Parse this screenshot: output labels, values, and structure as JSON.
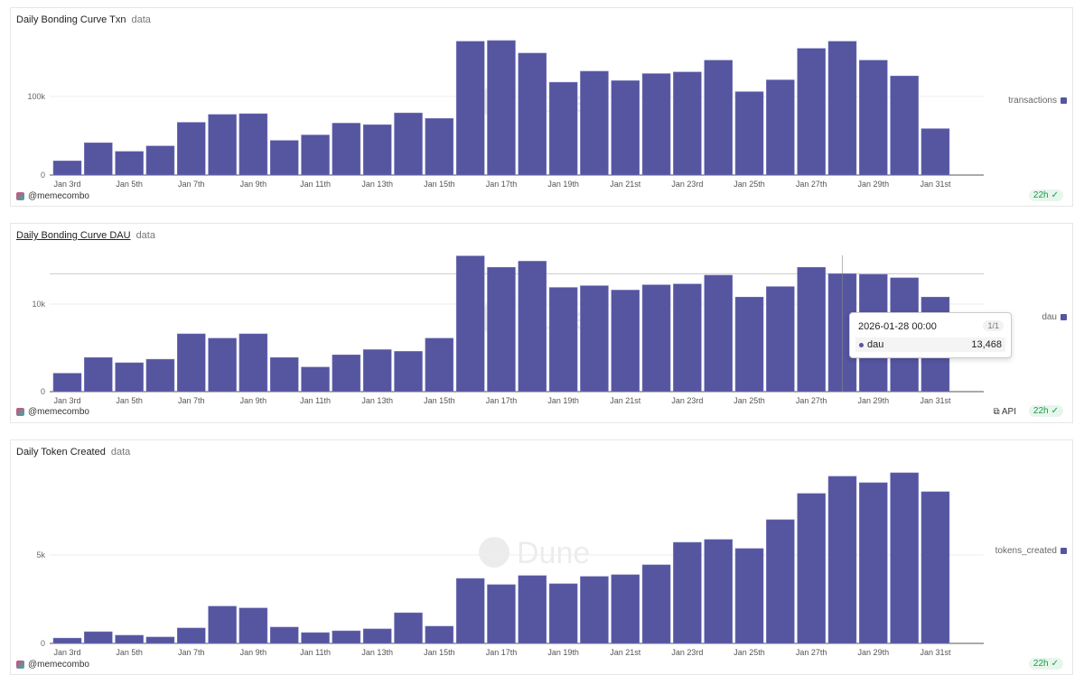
{
  "author": "@memecombo",
  "refresh": "22h",
  "api_label": "API",
  "bar_color": "#5555a0",
  "chart_data": [
    {
      "type": "bar",
      "title": "Daily Bonding Curve Txn",
      "subtitle": "data",
      "series": [
        {
          "name": "transactions",
          "values": [
            18000,
            41000,
            30000,
            37000,
            67000,
            77000,
            78000,
            44000,
            51000,
            66000,
            64000,
            79000,
            72000,
            170000,
            171000,
            155000,
            118000,
            132000,
            120000,
            129000,
            131000,
            146000,
            106000,
            121000,
            161000,
            170000,
            146000,
            126000,
            59000
          ]
        }
      ],
      "categories": [
        "Jan 3rd",
        "Jan 4th",
        "Jan 5th",
        "Jan 6th",
        "Jan 7th",
        "Jan 8th",
        "Jan 9th",
        "Jan 10th",
        "Jan 11th",
        "Jan 12th",
        "Jan 13th",
        "Jan 14th",
        "Jan 15th",
        "Jan 16th",
        "Jan 17th",
        "Jan 18th",
        "Jan 19th",
        "Jan 20th",
        "Jan 21st",
        "Jan 22nd",
        "Jan 23rd",
        "Jan 24th",
        "Jan 25th",
        "Jan 26th",
        "Jan 27th",
        "Jan 28th",
        "Jan 29th",
        "Jan 30th",
        "Jan 31st"
      ],
      "yticks": [
        {
          "v": 0,
          "label": "0"
        },
        {
          "v": 100000,
          "label": "100k"
        }
      ],
      "ylim": [
        0,
        187000
      ],
      "legend": "right",
      "grid": true
    },
    {
      "type": "bar",
      "title": "Daily Bonding Curve DAU",
      "subtitle": "data",
      "series": [
        {
          "name": "dau",
          "values": [
            2100,
            3900,
            3300,
            3700,
            6600,
            6100,
            6600,
            3900,
            2800,
            4200,
            4800,
            4600,
            6100,
            15500,
            14200,
            14900,
            11900,
            12100,
            11600,
            12200,
            12300,
            13300,
            10800,
            12000,
            14200,
            13468,
            13400,
            13000,
            10800
          ]
        }
      ],
      "categories": [
        "Jan 3rd",
        "Jan 4th",
        "Jan 5th",
        "Jan 6th",
        "Jan 7th",
        "Jan 8th",
        "Jan 9th",
        "Jan 10th",
        "Jan 11th",
        "Jan 12th",
        "Jan 13th",
        "Jan 14th",
        "Jan 15th",
        "Jan 16th",
        "Jan 17th",
        "Jan 18th",
        "Jan 19th",
        "Jan 20th",
        "Jan 21st",
        "Jan 22nd",
        "Jan 23rd",
        "Jan 24th",
        "Jan 25th",
        "Jan 26th",
        "Jan 27th",
        "Jan 28th",
        "Jan 29th",
        "Jan 30th",
        "Jan 31st"
      ],
      "yticks": [
        {
          "v": 0,
          "label": "0"
        },
        {
          "v": 10000,
          "label": "10k"
        }
      ],
      "ylim": [
        0,
        16800
      ],
      "legend": "right",
      "grid": true,
      "tooltip": {
        "date": "2026-01-28 00:00",
        "page": "1/1",
        "series": "dau",
        "value": "13,468",
        "index": 25
      }
    },
    {
      "type": "bar",
      "title": "Daily Token Created",
      "subtitle": "data",
      "series": [
        {
          "name": "tokens_created",
          "values": [
            300,
            660,
            460,
            360,
            870,
            2100,
            2000,
            920,
            610,
            710,
            820,
            1730,
            970,
            3670,
            3320,
            3830,
            3370,
            3780,
            3880,
            4440,
            5710,
            5870,
            5360,
            6990,
            8470,
            9440,
            9080,
            9640,
            8570
          ]
        }
      ],
      "categories": [
        "Jan 3rd",
        "Jan 4th",
        "Jan 5th",
        "Jan 6th",
        "Jan 7th",
        "Jan 8th",
        "Jan 9th",
        "Jan 10th",
        "Jan 11th",
        "Jan 12th",
        "Jan 13th",
        "Jan 14th",
        "Jan 15th",
        "Jan 16th",
        "Jan 17th",
        "Jan 18th",
        "Jan 19th",
        "Jan 20th",
        "Jan 21st",
        "Jan 22nd",
        "Jan 23rd",
        "Jan 24th",
        "Jan 25th",
        "Jan 26th",
        "Jan 27th",
        "Jan 28th",
        "Jan 29th",
        "Jan 30th",
        "Jan 31st"
      ],
      "yticks": [
        {
          "v": 0,
          "label": "0"
        },
        {
          "v": 5000,
          "label": "5k"
        }
      ],
      "ylim": [
        0,
        10300
      ],
      "legend": "right",
      "grid": true
    }
  ]
}
